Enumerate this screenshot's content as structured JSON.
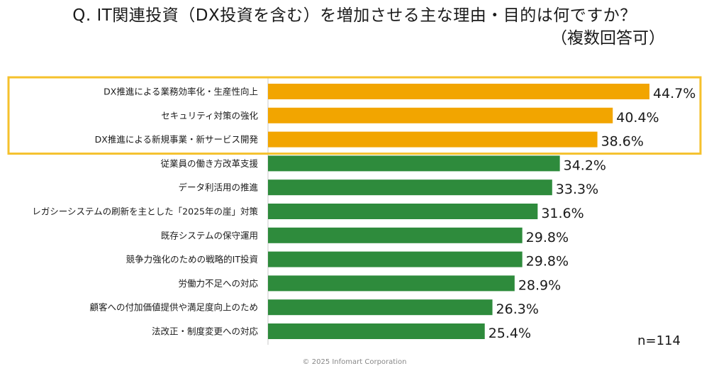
{
  "title": "Q. IT関連投資（DX投資を含む）を増加させる主な理由・目的は何ですか？",
  "subtitle": "（複数回答可）",
  "note": "n=114",
  "copyright": "© 2025 Infomart Corporation",
  "colors": {
    "highlight_bar": "#f2a500",
    "normal_bar": "#2e8b3c",
    "highlight_box": "#f5c12c",
    "axis": "#c8c8c8"
  },
  "chart_data": {
    "type": "bar",
    "orientation": "horizontal",
    "categories": [
      "DX推進による業務効率化・生産性向上",
      "セキュリティ対策の強化",
      "DX推進による新規事業・新サービス開発",
      "従業員の働き方改革支援",
      "データ利活用の推進",
      "レガシーシステムの刷新を主とした「2025年の崖」対策",
      "既存システムの保守運用",
      "競争力強化のための戦略的IT投資",
      "労働力不足への対応",
      "顧客への付加価値提供や満足度向上のため",
      "法改正・制度変更への対応"
    ],
    "values": [
      44.7,
      40.4,
      38.6,
      34.2,
      33.3,
      31.6,
      29.8,
      29.8,
      28.9,
      26.3,
      25.4
    ],
    "value_labels": [
      "44.7%",
      "40.4%",
      "38.6%",
      "34.2%",
      "33.3%",
      "31.6%",
      "29.8%",
      "29.8%",
      "28.9%",
      "26.3%",
      "25.4%"
    ],
    "highlighted_count": 3,
    "unit": "%",
    "xlim": [
      0,
      50
    ]
  }
}
